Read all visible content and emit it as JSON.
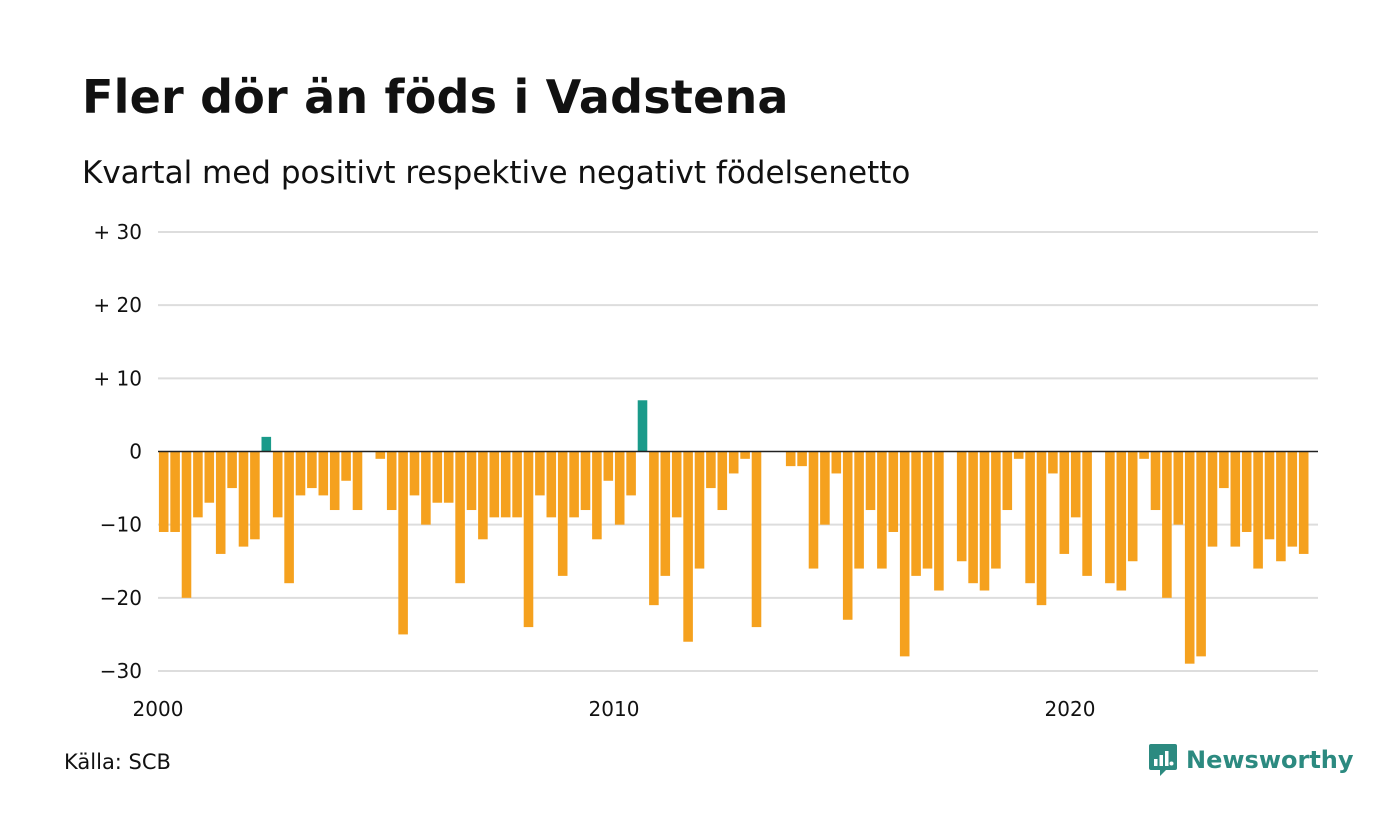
{
  "title": "Fler dör än föds i Vadstena",
  "subtitle": "Kvartal med positivt respektive negativt födelsenetto",
  "source": "Källa: SCB",
  "brand": {
    "name": "Newsworthy",
    "icon": "newsworthy-logo-icon",
    "color": "#2c8a80"
  },
  "colors": {
    "positive": "#1a9a8a",
    "negative": "#f5a11e",
    "grid": "#dddddd",
    "zero_line": "#222222"
  },
  "chart_data": {
    "type": "bar",
    "title": "Fler dör än föds i Vadstena",
    "subtitle": "Kvartal med positivt respektive negativt födelsenetto",
    "ylim": [
      -30,
      30
    ],
    "yticks": [
      -30,
      -20,
      -10,
      0,
      10,
      20,
      30
    ],
    "ytick_labels": [
      "−30",
      "−20",
      "−10",
      "0",
      "+ 10",
      "+ 20",
      "+ 30"
    ],
    "xlim": [
      2000,
      2025.5
    ],
    "xticks": [
      2000,
      2010,
      2020
    ],
    "xtick_labels": [
      "2000",
      "2010",
      "2020"
    ],
    "grid": true,
    "x_start": 2000,
    "quarters_per_year": 4,
    "values": [
      -11,
      -11,
      -20,
      -9,
      -7,
      -14,
      -5,
      -13,
      -12,
      2,
      -9,
      -18,
      -6,
      -5,
      -6,
      -8,
      -4,
      -8,
      0,
      -1,
      -8,
      -25,
      -6,
      -10,
      -7,
      -7,
      -18,
      -8,
      -12,
      -9,
      -9,
      -9,
      -24,
      -6,
      -9,
      -17,
      -9,
      -8,
      -12,
      -4,
      -10,
      -6,
      7,
      -21,
      -17,
      -9,
      -26,
      -16,
      -5,
      -8,
      -3,
      -1,
      -24,
      0,
      0,
      -2,
      -2,
      -16,
      -10,
      -3,
      -23,
      -16,
      -8,
      -16,
      -11,
      -28,
      -17,
      -16,
      -19,
      0,
      -15,
      -18,
      -19,
      -16,
      -8,
      -1,
      -18,
      -21,
      -3,
      -14,
      -9,
      -17,
      0,
      -18,
      -19,
      -15,
      -1,
      -8,
      -20,
      -10,
      -29,
      -28,
      -13,
      -5,
      -13,
      -11,
      -16,
      -12,
      -15,
      -13,
      -14
    ]
  }
}
